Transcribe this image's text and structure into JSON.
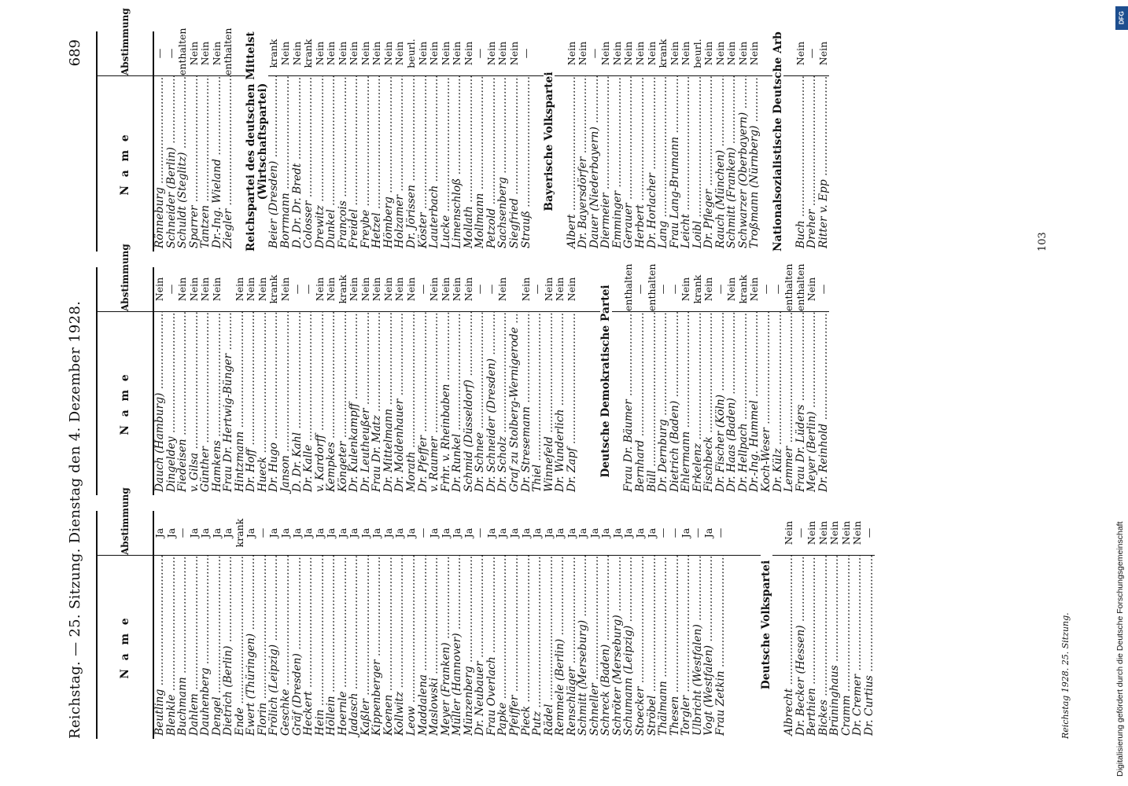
{
  "header": {
    "running_head": "Reichstag. — 25. Sitzung. Dienstag den 4. Dezember 1928.",
    "page_number": "689"
  },
  "table_headers": {
    "name": "N a m e",
    "vote": "Abstimmung"
  },
  "columns": [
    {
      "rows": [
        {
          "name": "Beutling",
          "vote": "Ja"
        },
        {
          "name": "Blenkle",
          "vote": "Ja"
        },
        {
          "name": "Buchmann",
          "vote": "—"
        },
        {
          "name": "Dahlem",
          "vote": "Ja"
        },
        {
          "name": "Dauhenberg",
          "vote": "Ja"
        },
        {
          "name": "Dengel",
          "vote": "Ja"
        },
        {
          "name": "Dietrich (Berlin)",
          "vote": "Ja"
        },
        {
          "name": "Ende",
          "vote": "krank"
        },
        {
          "name": "Ewert (Thüringen)",
          "vote": "Ja"
        },
        {
          "name": "Florin",
          "vote": "—"
        },
        {
          "name": "Frölich (Leipzig)",
          "vote": "Ja"
        },
        {
          "name": "Geschke",
          "vote": "Ja"
        },
        {
          "name": "Gräf (Dresden)",
          "vote": "Ja"
        },
        {
          "name": "Heckert",
          "vote": "Ja"
        },
        {
          "name": "Hein",
          "vote": "Ja"
        },
        {
          "name": "Höllein",
          "vote": "Ja"
        },
        {
          "name": "Hoernle",
          "vote": "Ja"
        },
        {
          "name": "Jadasch",
          "vote": "Ja"
        },
        {
          "name": "Kaßler",
          "vote": "Ja"
        },
        {
          "name": "Kippenberger",
          "vote": "Ja"
        },
        {
          "name": "Koenen",
          "vote": "Ja"
        },
        {
          "name": "Kollwitz",
          "vote": "Ja"
        },
        {
          "name": "Leow",
          "vote": "Ja"
        },
        {
          "name": "Maddalena",
          "vote": "—"
        },
        {
          "name": "Maslowski",
          "vote": "Ja"
        },
        {
          "name": "Meyer (Franken)",
          "vote": "Ja"
        },
        {
          "name": "Müller (Hannover)",
          "vote": "Ja"
        },
        {
          "name": "Münzenberg",
          "vote": "Ja"
        },
        {
          "name": "Dr. Neubauer",
          "vote": "—"
        },
        {
          "name": "Frau Overlach",
          "vote": "Ja"
        },
        {
          "name": "Papke",
          "vote": "Ja"
        },
        {
          "name": "Pfeiffer",
          "vote": "Ja"
        },
        {
          "name": "Pieck",
          "vote": "Ja"
        },
        {
          "name": "Putz",
          "vote": "Ja"
        },
        {
          "name": "Rädel",
          "vote": "Ja"
        },
        {
          "name": "Remmele (Berlin)",
          "vote": "Ja"
        },
        {
          "name": "Renschläger",
          "vote": "Ja"
        },
        {
          "name": "Schmitt (Merseburg)",
          "vote": "Ja"
        },
        {
          "name": "Schneller",
          "vote": "Ja"
        },
        {
          "name": "Schreck (Baden)",
          "vote": "Ja"
        },
        {
          "name": "Schröter (Merseburg)",
          "vote": "Ja"
        },
        {
          "name": "Schumann (Leipzig)",
          "vote": "Ja"
        },
        {
          "name": "Stoecker",
          "vote": "Ja"
        },
        {
          "name": "Ströbel",
          "vote": "Ja"
        },
        {
          "name": "Thälmann",
          "vote": "—"
        },
        {
          "name": "Thesen",
          "vote": "—"
        },
        {
          "name": "Torgler",
          "vote": "Ja"
        },
        {
          "name": "Ulbricht (Westfalen)",
          "vote": "—"
        },
        {
          "name": "Vogt (Westfalen)",
          "vote": "Ja"
        },
        {
          "name": "Frau Zetkin",
          "vote": "—"
        },
        {
          "gap": true
        },
        {
          "gap": true
        },
        {
          "gap": true
        },
        {
          "party": "Deutsche Volkspartei"
        },
        {
          "gap": true
        },
        {
          "name": "Albrecht",
          "vote": "Nein"
        },
        {
          "name": "Dr. Becker (Hessen)",
          "vote": "—"
        },
        {
          "name": "Berthien",
          "vote": "Nein"
        },
        {
          "name": "Bickes",
          "vote": "Nein"
        },
        {
          "name": "Brüninghaus",
          "vote": "Nein"
        },
        {
          "name": "Cramm",
          "vote": "Nein"
        },
        {
          "name": "Dr. Cremer",
          "vote": "Nein"
        },
        {
          "name": "Dr. Curtius",
          "vote": "—"
        }
      ]
    },
    {
      "rows": [
        {
          "name": "Dauch (Hamburg)",
          "vote": "Nein"
        },
        {
          "name": "Dingeldey",
          "vote": "—"
        },
        {
          "name": "Fiedeisen",
          "vote": "Nein"
        },
        {
          "name": "v. Gilsa",
          "vote": "Nein"
        },
        {
          "name": "Günther",
          "vote": "Nein"
        },
        {
          "name": "Hamkens",
          "vote": "Nein"
        },
        {
          "name": "Frau Dr. Hertwig-Bünger",
          "vote": ""
        },
        {
          "name": "Hintzmann",
          "vote": "Nein"
        },
        {
          "name": "Dr. Hoff",
          "vote": "Nein"
        },
        {
          "name": "Hueck",
          "vote": "Nein"
        },
        {
          "name": "Dr. Hugo",
          "vote": "krank"
        },
        {
          "name": "Janson",
          "vote": "Nein"
        },
        {
          "name": "D. Dr. Kahl",
          "vote": "—"
        },
        {
          "name": "Dr. Kalle",
          "vote": "—"
        },
        {
          "name": "v. Kardorff",
          "vote": "Nein"
        },
        {
          "name": "Kempkes",
          "vote": "Nein"
        },
        {
          "name": "Köngeter",
          "vote": "krank"
        },
        {
          "name": "Dr. Kulenkampff",
          "vote": "Nein"
        },
        {
          "name": "Dr. Leutheußer",
          "vote": "Nein"
        },
        {
          "name": "Frau Dr. Matz",
          "vote": "Nein"
        },
        {
          "name": "Dr. Mittelmann",
          "vote": "Nein"
        },
        {
          "name": "Dr. Moldenhauer",
          "vote": "Nein"
        },
        {
          "name": "Morath",
          "vote": "Nein"
        },
        {
          "name": "Dr. Pfeffer",
          "vote": "—"
        },
        {
          "name": "v. Raumer",
          "vote": "Nein"
        },
        {
          "name": "Frhr. v. Rheinbaben",
          "vote": "Nein"
        },
        {
          "name": "Dr. Runkel",
          "vote": "Nein"
        },
        {
          "name": "Schmid (Düsseldorf)",
          "vote": "Nein"
        },
        {
          "name": "Dr. Schnee",
          "vote": "—"
        },
        {
          "name": "Dr. Schneider (Dresden)",
          "vote": "—"
        },
        {
          "name": "Dr. Scholz",
          "vote": "Nein"
        },
        {
          "name": "Graf zu Stolberg-Wernigerode",
          "vote": ""
        },
        {
          "name": "Dr. Stresemann",
          "vote": "Nein"
        },
        {
          "name": "Thiel",
          "vote": "—"
        },
        {
          "name": "Winnefeld",
          "vote": "Nein"
        },
        {
          "name": "Dr. Wunderlich",
          "vote": "Nein"
        },
        {
          "name": "Dr. Zapf",
          "vote": "Nein"
        },
        {
          "gap": true
        },
        {
          "gap": true
        },
        {
          "party": "Deutsche Demokratische Partei"
        },
        {
          "gap": true
        },
        {
          "name": "Frau Dr. Bäumer",
          "vote": "enthalten"
        },
        {
          "name": "Bernhard",
          "vote": "—"
        },
        {
          "name": "Büll",
          "vote": "enthalten"
        },
        {
          "name": "Dr. Dernburg",
          "vote": "—"
        },
        {
          "name": "Dietrich (Baden)",
          "vote": "—"
        },
        {
          "name": "Ehlermann",
          "vote": "Nein"
        },
        {
          "name": "Erkelenz",
          "vote": "krank"
        },
        {
          "name": "Fischbeck",
          "vote": "Nein"
        },
        {
          "name": "Dr. Fischer (Köln)",
          "vote": "—"
        },
        {
          "name": "Dr. Haas (Baden)",
          "vote": "Nein"
        },
        {
          "name": "Dr. Hellpach",
          "vote": "krank"
        },
        {
          "name": "Dr.-Ing. Hummel",
          "vote": "Nein"
        },
        {
          "name": "Koch-Weser",
          "vote": "—"
        },
        {
          "name": "Dr. Külz",
          "vote": "—"
        },
        {
          "name": "Lemmer",
          "vote": "enthalten"
        },
        {
          "name": "Frau Dr. Lüders",
          "vote": "enthalten"
        },
        {
          "name": "Meyer (Berlin)",
          "vote": "Nein"
        },
        {
          "name": "Dr. Reinhold",
          "vote": "—"
        }
      ]
    },
    {
      "rows": [
        {
          "name": "Rönneburg",
          "vote": "—"
        },
        {
          "name": "Schneider (Berlin)",
          "vote": "—"
        },
        {
          "name": "Schuldt (Steglitz)",
          "vote": "enthalten"
        },
        {
          "name": "Sparrer",
          "vote": "Nein"
        },
        {
          "name": "Tantzen",
          "vote": "Nein"
        },
        {
          "name": "Dr.-Ing. Wieland",
          "vote": "Nein"
        },
        {
          "name": "Ziegler",
          "vote": "enthalten"
        },
        {
          "gap": true
        },
        {
          "party": "Reichspartei des deutschen Mittelstandes"
        },
        {
          "party": "(Wirtschaftspartei)"
        },
        {
          "name": "Beier (Dresden)",
          "vote": "krank"
        },
        {
          "name": "Borrmann",
          "vote": "Nein"
        },
        {
          "name": "D. Dr. Dr. Bredt",
          "vote": "Nein"
        },
        {
          "name": "Colosser",
          "vote": "krank"
        },
        {
          "name": "Drewitz",
          "vote": "Nein"
        },
        {
          "name": "Dunkel",
          "vote": "Nein"
        },
        {
          "name": "François",
          "vote": "Nein"
        },
        {
          "name": "Freidel",
          "vote": "Nein"
        },
        {
          "name": "Freybe",
          "vote": "Nein"
        },
        {
          "name": "Hetzel",
          "vote": "Nein"
        },
        {
          "name": "Hömberg",
          "vote": "Nein"
        },
        {
          "name": "Holzamer",
          "vote": "Nein"
        },
        {
          "name": "Dr. Jörissen",
          "vote": "beurl."
        },
        {
          "name": "Köster",
          "vote": "Nein"
        },
        {
          "name": "Lauterbach",
          "vote": "Nein"
        },
        {
          "name": "Lucke",
          "vote": "Nein"
        },
        {
          "name": "Limenschloß",
          "vote": "Nein"
        },
        {
          "name": "Mollath",
          "vote": "Nein"
        },
        {
          "name": "Mollmann",
          "vote": "—"
        },
        {
          "name": "Petzold",
          "vote": "Nein"
        },
        {
          "name": "Sachsenberg",
          "vote": "Nein"
        },
        {
          "name": "Siegfried",
          "vote": "Nein"
        },
        {
          "name": "Strauß",
          "vote": "—"
        },
        {
          "gap": true
        },
        {
          "party": "Bayerische Volkspartei"
        },
        {
          "gap": true
        },
        {
          "name": "Albert",
          "vote": "Nein"
        },
        {
          "name": "Dr. Bayersdörfer",
          "vote": "Nein"
        },
        {
          "name": "Dauer (Niederbayern)",
          "vote": "—"
        },
        {
          "name": "Diermeier",
          "vote": "Nein"
        },
        {
          "name": "Emminger",
          "vote": "Nein"
        },
        {
          "name": "Gerauer",
          "vote": "Nein"
        },
        {
          "name": "Herbert",
          "vote": "Nein"
        },
        {
          "name": "Dr. Horlacher",
          "vote": "Nein"
        },
        {
          "name": "Lang",
          "vote": "krank"
        },
        {
          "name": "Frau Lang-Brumann",
          "vote": "Nein"
        },
        {
          "name": "Leicht",
          "vote": "Nein"
        },
        {
          "name": "Loibl",
          "vote": "beurl."
        },
        {
          "name": "Dr. Pfleger",
          "vote": "Nein"
        },
        {
          "name": "Rauch (München)",
          "vote": "Nein"
        },
        {
          "name": "Schmitt (Franken)",
          "vote": "Nein"
        },
        {
          "name": "Schwarzer (Oberbayern)",
          "vote": "Nein"
        },
        {
          "name": "Troßmann (Nürnberg)",
          "vote": "Nein"
        },
        {
          "gap": true
        },
        {
          "party": "Nationalsozialistische Deutsche Arbeiterpartei"
        },
        {
          "gap": true
        },
        {
          "name": "Buch",
          "vote": "Nein"
        },
        {
          "name": "Dreher",
          "vote": "—"
        },
        {
          "name": "Ritter v. Epp",
          "vote": "Nein"
        }
      ]
    }
  ],
  "footer": {
    "left": "Reichstag 1928. 25. Sitzung.",
    "signature": "103"
  },
  "sidebar": {
    "text": "Digitalisierung gefördert durch die Deutsche Forschungsgemeinschaft",
    "logo": "DFG"
  }
}
